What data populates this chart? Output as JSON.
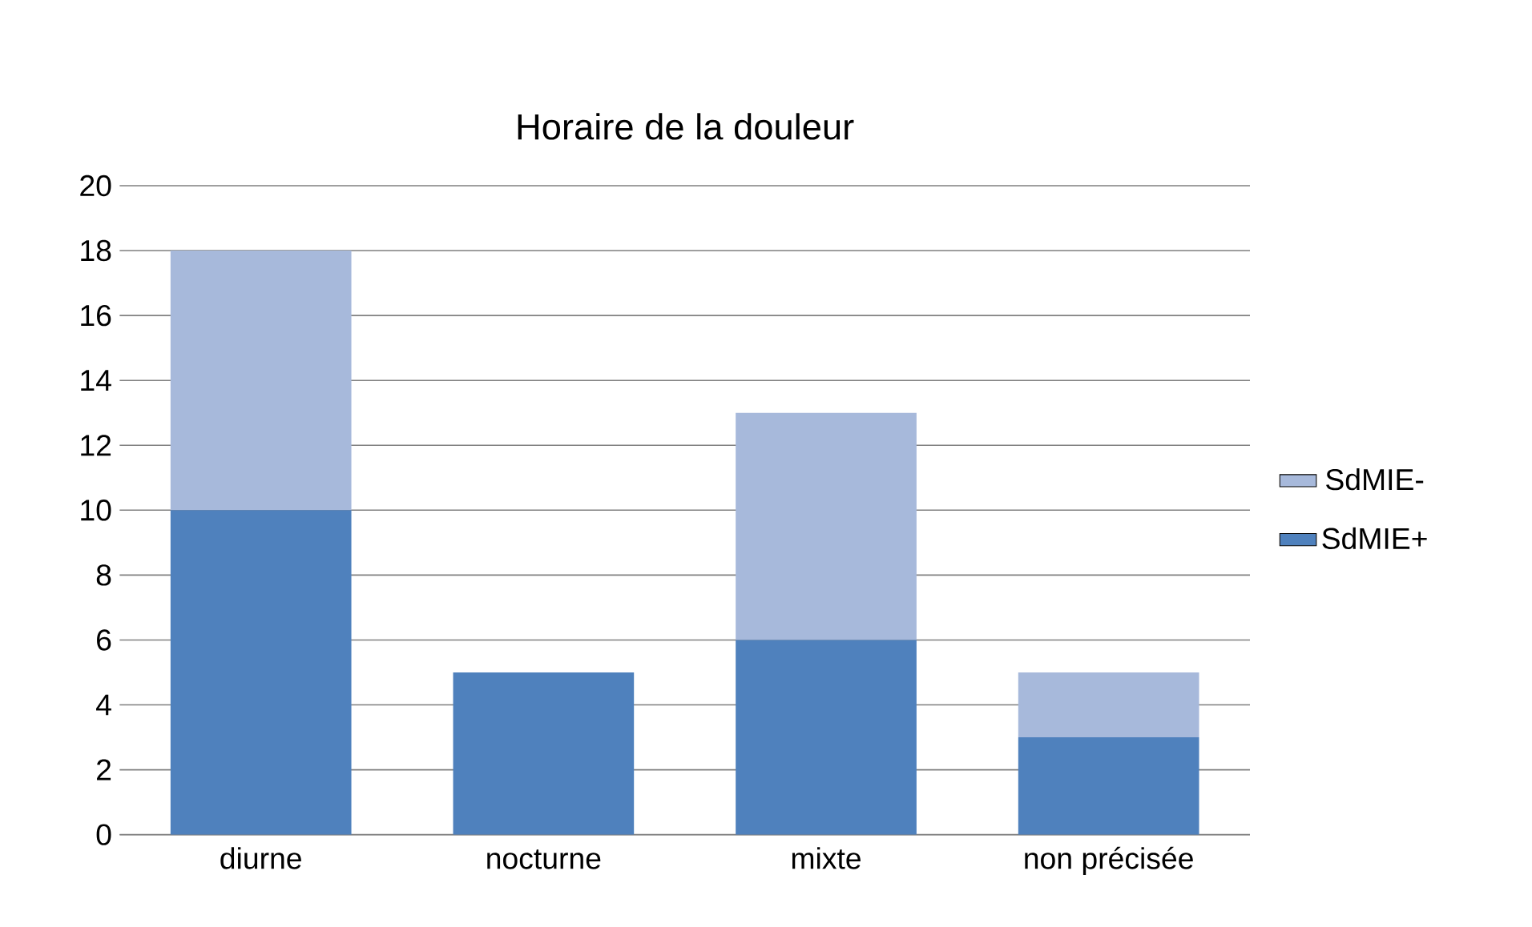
{
  "chart_data": {
    "type": "bar",
    "title": "Horaire de la douleur",
    "categories": [
      "diurne",
      "nocturne",
      "mixte",
      "non précisée"
    ],
    "stacked": true,
    "series": [
      {
        "name": "SdMIE+",
        "color": "#4f81bd",
        "values": [
          10,
          5,
          6,
          3
        ]
      },
      {
        "name": "SdMIE-",
        "color": "#a7b9db",
        "values": [
          8,
          0,
          7,
          2
        ]
      }
    ],
    "ylim": [
      0,
      20
    ],
    "yticks": [
      0,
      2,
      4,
      6,
      8,
      10,
      12,
      14,
      16,
      18,
      20
    ],
    "grid": "y",
    "legend": "right"
  }
}
